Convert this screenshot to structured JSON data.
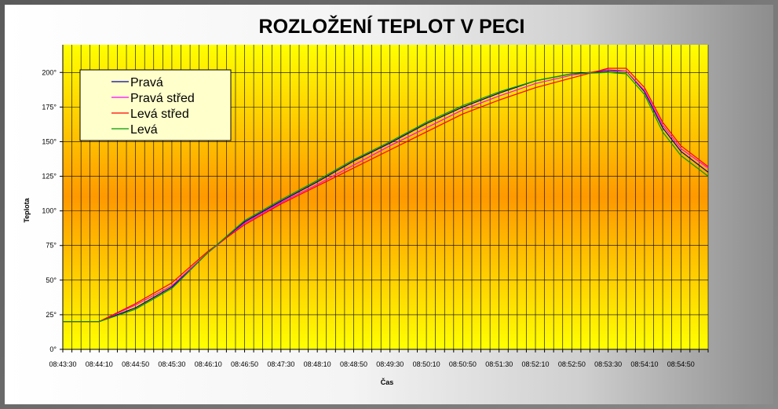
{
  "chart_data": {
    "type": "line",
    "title": "ROZLOŽENÍ TEPLOT V PECI",
    "xlabel": "Čas",
    "ylabel": "Teplota",
    "ylim": [
      0,
      220
    ],
    "yticks": [
      "0°",
      "25°",
      "50°",
      "75°",
      "100°",
      "125°",
      "150°",
      "175°",
      "200°"
    ],
    "yticks_values": [
      0,
      25,
      50,
      75,
      100,
      125,
      150,
      175,
      200
    ],
    "xtick_labels": [
      "08:43:30",
      "08:44:10",
      "08:44:50",
      "08:45:30",
      "08:46:10",
      "08:46:50",
      "08:47:30",
      "08:48:10",
      "08:48:50",
      "08:49:30",
      "08:50:10",
      "08:50:50",
      "08:51:30",
      "08:52:10",
      "08:52:50",
      "08:53:30",
      "08:54:10",
      "08:54:50"
    ],
    "x_start": "08:43:30",
    "x_end": "08:55:20",
    "x_step_seconds": 10,
    "grid": true,
    "legend": "top-left",
    "background_gradient": [
      "#ffff00",
      "#ff9900",
      "#ffff00"
    ],
    "series": [
      {
        "name": "Pravá",
        "color": "#000099",
        "x": [
          "08:43:30",
          "08:44:10",
          "08:44:50",
          "08:45:30",
          "08:46:10",
          "08:46:50",
          "08:47:30",
          "08:48:10",
          "08:48:50",
          "08:49:30",
          "08:50:10",
          "08:50:50",
          "08:51:30",
          "08:52:10",
          "08:52:50",
          "08:53:30",
          "08:53:50",
          "08:54:10",
          "08:54:30",
          "08:54:50",
          "08:55:20"
        ],
        "y": [
          20,
          20,
          30,
          45,
          70,
          92,
          107,
          121,
          136,
          149,
          163,
          175,
          185,
          194,
          199,
          201,
          201,
          186,
          160,
          143,
          128
        ]
      },
      {
        "name": "Pravá střed",
        "color": "#ff00ff",
        "x": [
          "08:43:30",
          "08:44:10",
          "08:44:50",
          "08:45:30",
          "08:46:10",
          "08:46:50",
          "08:47:30",
          "08:48:10",
          "08:48:50",
          "08:49:30",
          "08:50:10",
          "08:50:50",
          "08:51:30",
          "08:52:10",
          "08:52:50",
          "08:53:30",
          "08:53:50",
          "08:54:10",
          "08:54:30",
          "08:54:50",
          "08:55:20"
        ],
        "y": [
          20,
          20,
          32,
          46,
          70,
          91,
          106,
          119,
          133,
          147,
          160,
          173,
          183,
          192,
          198,
          202,
          201,
          187,
          162,
          145,
          131
        ]
      },
      {
        "name": "Levá střed",
        "color": "#ff0000",
        "x": [
          "08:43:30",
          "08:44:10",
          "08:44:50",
          "08:45:30",
          "08:46:10",
          "08:46:50",
          "08:47:30",
          "08:48:10",
          "08:48:50",
          "08:49:30",
          "08:50:10",
          "08:50:50",
          "08:51:30",
          "08:52:10",
          "08:52:50",
          "08:53:30",
          "08:53:50",
          "08:54:10",
          "08:54:30",
          "08:54:50",
          "08:55:20"
        ],
        "y": [
          20,
          20,
          33,
          48,
          71,
          90,
          105,
          118,
          131,
          144,
          157,
          170,
          180,
          189,
          196,
          203,
          203,
          189,
          164,
          147,
          132
        ]
      },
      {
        "name": "Levá",
        "color": "#009900",
        "x": [
          "08:43:30",
          "08:44:10",
          "08:44:50",
          "08:45:30",
          "08:46:10",
          "08:46:50",
          "08:47:30",
          "08:48:10",
          "08:48:50",
          "08:49:30",
          "08:50:10",
          "08:50:50",
          "08:51:30",
          "08:52:10",
          "08:52:50",
          "08:53:30",
          "08:53:50",
          "08:54:10",
          "08:54:30",
          "08:54:50",
          "08:55:20"
        ],
        "y": [
          20,
          20,
          29,
          44,
          70,
          93,
          108,
          122,
          137,
          150,
          164,
          176,
          186,
          194,
          199,
          200,
          199,
          184,
          157,
          140,
          125
        ]
      }
    ]
  }
}
